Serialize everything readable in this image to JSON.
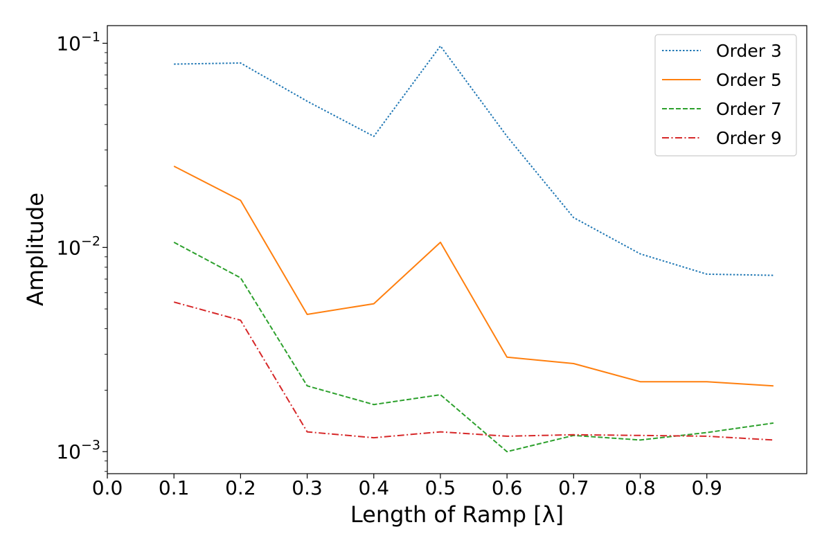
{
  "chart_data": {
    "type": "line",
    "xlabel": "Length of Ramp [λ]",
    "ylabel": "Amplitude",
    "x_ticks": [
      "0.0",
      "0.1",
      "0.2",
      "0.3",
      "0.4",
      "0.5",
      "0.6",
      "0.7",
      "0.8",
      "0.9"
    ],
    "y_scale": "log",
    "y_ticks": [
      {
        "value": 0.1,
        "base": "10",
        "exp": "−1"
      },
      {
        "value": 0.01,
        "base": "10",
        "exp": "−2"
      },
      {
        "value": 0.001,
        "base": "10",
        "exp": "−3"
      }
    ],
    "xlim": [
      0.0,
      1.05
    ],
    "ylim": [
      0.00078,
      0.122
    ],
    "grid": false,
    "legend_position": "top-right",
    "x": [
      0.1,
      0.2,
      0.3,
      0.4,
      0.5,
      0.6,
      0.7,
      0.8,
      0.9,
      1.0
    ],
    "series": [
      {
        "name": "Order 3",
        "color": "#1f77b4",
        "dash": "dotted",
        "values": [
          0.079,
          0.08,
          0.052,
          0.035,
          0.097,
          0.035,
          0.014,
          0.0093,
          0.0074,
          0.0073
        ]
      },
      {
        "name": "Order 5",
        "color": "#ff7f0e",
        "dash": "solid",
        "values": [
          0.025,
          0.017,
          0.0047,
          0.0053,
          0.0106,
          0.0029,
          0.0027,
          0.0022,
          0.0022,
          0.0021
        ]
      },
      {
        "name": "Order 7",
        "color": "#2ca02c",
        "dash": "dashed",
        "values": [
          0.0106,
          0.0071,
          0.0021,
          0.0017,
          0.0019,
          0.001,
          0.0012,
          0.00114,
          0.00124,
          0.00138
        ]
      },
      {
        "name": "Order 9",
        "color": "#d62728",
        "dash": "dashdot",
        "values": [
          0.0054,
          0.0044,
          0.00125,
          0.00117,
          0.00125,
          0.00119,
          0.00121,
          0.0012,
          0.00119,
          0.00114
        ]
      }
    ]
  }
}
